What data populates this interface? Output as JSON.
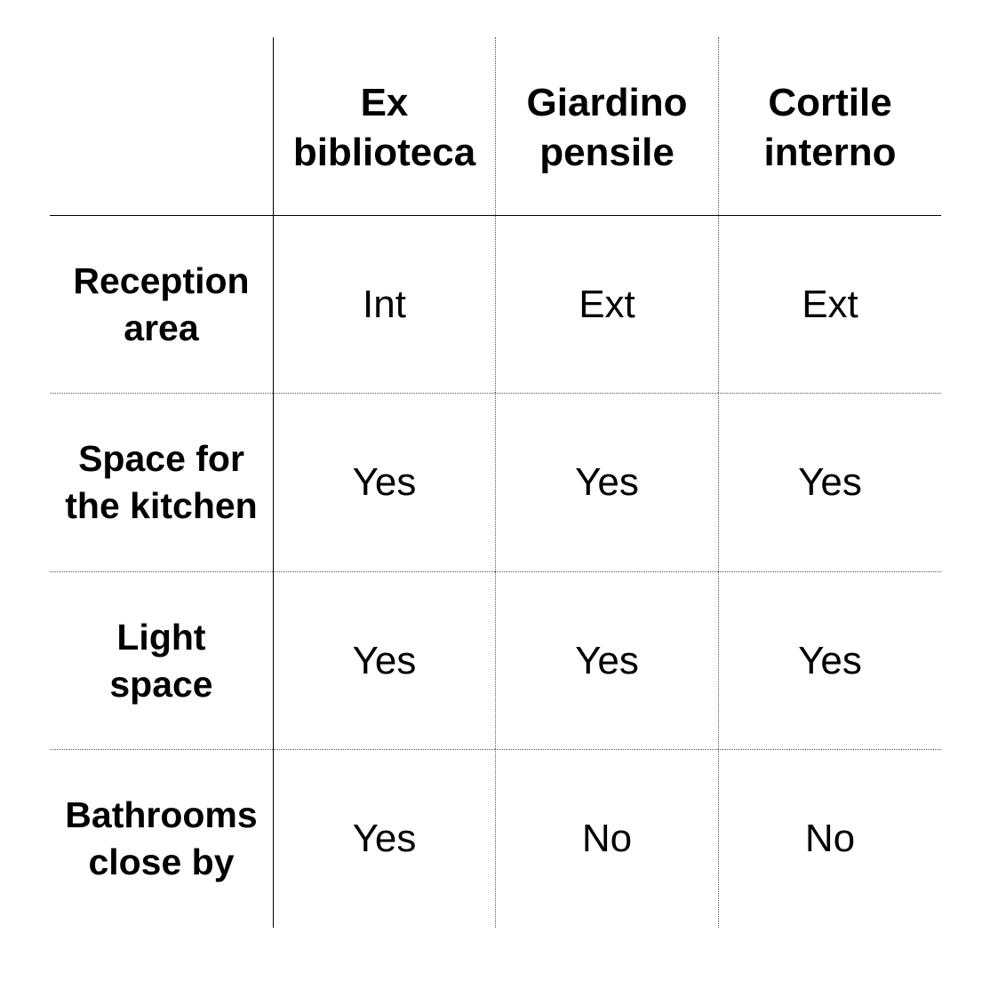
{
  "table": {
    "columns": [
      "Ex\nbiblioteca",
      "Giardino\npensile",
      "Cortile\ninterno"
    ],
    "rows": [
      {
        "label": "Reception\narea",
        "values": [
          "Int",
          "Ext",
          "Ext"
        ]
      },
      {
        "label": "Space for\nthe kitchen",
        "values": [
          "Yes",
          "Yes",
          "Yes"
        ]
      },
      {
        "label": "Light\nspace",
        "values": [
          "Yes",
          "Yes",
          "Yes"
        ]
      },
      {
        "label": "Bathrooms\nclose by",
        "values": [
          "Yes",
          "No",
          "No"
        ]
      }
    ]
  }
}
